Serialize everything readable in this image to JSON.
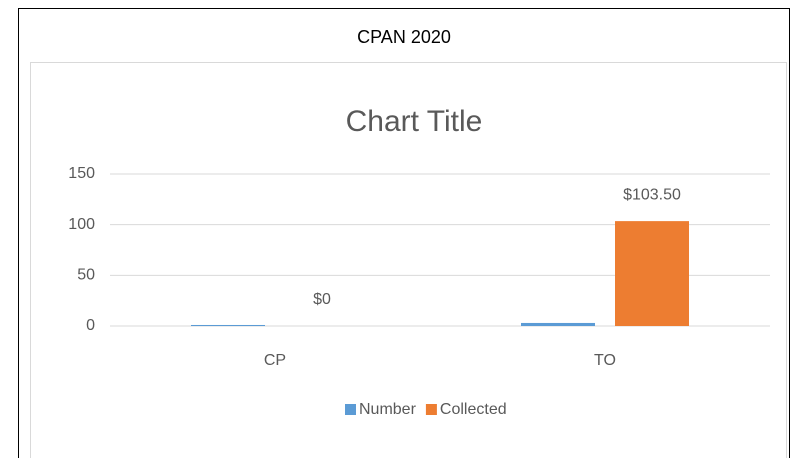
{
  "header": {
    "title": "CPAN 2020"
  },
  "chart_data": {
    "type": "bar",
    "title": "Chart Title",
    "categories": [
      "CP",
      "TO"
    ],
    "series": [
      {
        "name": "Number",
        "color": "#5b9bd5",
        "values": [
          1,
          3
        ]
      },
      {
        "name": "Collected",
        "color": "#ed7d31",
        "values": [
          0,
          103.5
        ],
        "value_labels": [
          "$0",
          "$103.50"
        ]
      }
    ],
    "ylim": [
      0,
      150
    ],
    "yticks": [
      0,
      50,
      100,
      150
    ],
    "grid": true,
    "legend": "bottom"
  }
}
